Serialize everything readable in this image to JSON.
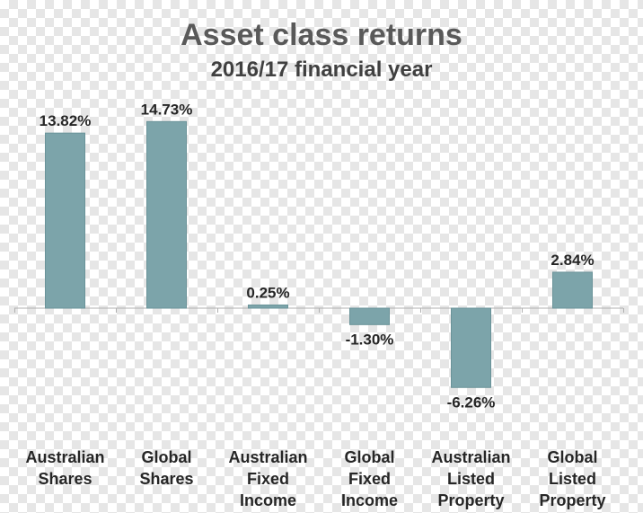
{
  "chart_data": {
    "type": "bar",
    "title": "Asset class returns",
    "subtitle": "2016/17 financial year",
    "categories": [
      [
        "Australian",
        "Shares"
      ],
      [
        "Global",
        "Shares"
      ],
      [
        "Australian",
        "Fixed",
        "Income"
      ],
      [
        "Global",
        "Fixed",
        "Income"
      ],
      [
        "Australian",
        "Listed",
        "Property"
      ],
      [
        "Global",
        "Listed",
        "Property"
      ]
    ],
    "values": [
      13.82,
      14.73,
      0.25,
      -1.3,
      -6.26,
      2.84
    ],
    "data_labels": [
      "13.82%",
      "14.73%",
      "0.25%",
      "-1.30%",
      "-6.26%",
      "2.84%"
    ],
    "unit": "%",
    "ylim": [
      -6.26,
      14.73
    ],
    "grid": false,
    "colors": {
      "bar": "#7ca4aa",
      "bar_edge": "#6a9399",
      "axis": "#b0b0b0"
    }
  }
}
